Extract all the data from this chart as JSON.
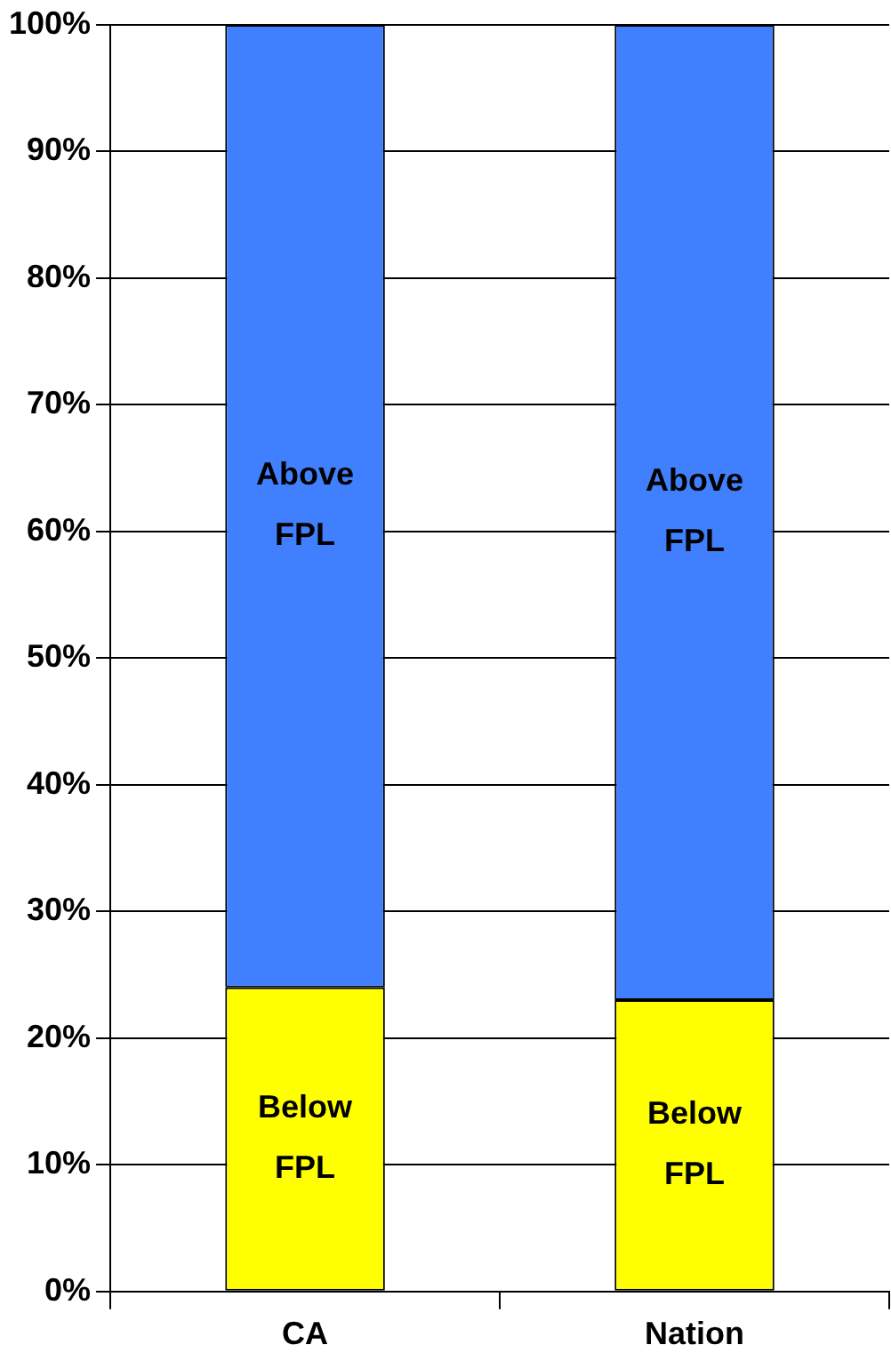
{
  "chart_data": {
    "type": "bar",
    "stacked": true,
    "categories": [
      "CA",
      "Nation"
    ],
    "series": [
      {
        "name": "Below FPL",
        "color": "#ffff00",
        "values": [
          24,
          23
        ]
      },
      {
        "name": "Above FPL",
        "color": "#4080ff",
        "values": [
          76,
          77
        ]
      }
    ],
    "ylim": [
      0,
      100
    ],
    "yticks": [
      {
        "value": 0,
        "label": "0%"
      },
      {
        "value": 10,
        "label": "10%"
      },
      {
        "value": 20,
        "label": "20%"
      },
      {
        "value": 30,
        "label": "30%"
      },
      {
        "value": 40,
        "label": "40%"
      },
      {
        "value": 50,
        "label": "50%"
      },
      {
        "value": 60,
        "label": "60%"
      },
      {
        "value": 70,
        "label": "70%"
      },
      {
        "value": 80,
        "label": "80%"
      },
      {
        "value": 90,
        "label": "90%"
      },
      {
        "value": 100,
        "label": "100%"
      }
    ],
    "grid": "y",
    "legend": false
  }
}
